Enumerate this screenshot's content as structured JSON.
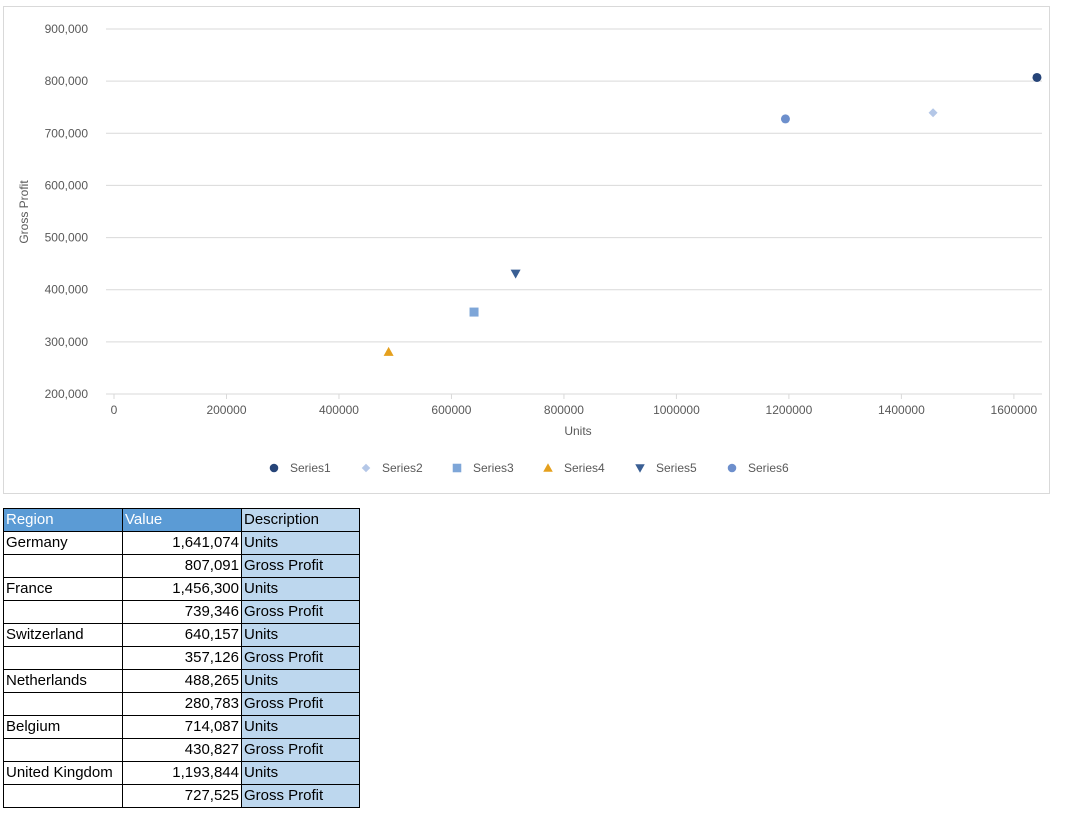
{
  "chart_data": {
    "type": "scatter",
    "xlabel": "Units",
    "ylabel": "Gross Profit",
    "xlim": [
      0,
      1650000
    ],
    "ylim": [
      200000,
      900000
    ],
    "x_ticks": [
      "0",
      "200000",
      "400000",
      "600000",
      "800000",
      "1000000",
      "1200000",
      "1400000",
      "1600000"
    ],
    "x_tick_values": [
      0,
      200000,
      400000,
      600000,
      800000,
      1000000,
      1200000,
      1400000,
      1600000
    ],
    "y_ticks": [
      "200,000",
      "300,000",
      "400,000",
      "500,000",
      "600,000",
      "700,000",
      "800,000",
      "900,000"
    ],
    "y_tick_values": [
      200000,
      300000,
      400000,
      500000,
      600000,
      700000,
      800000,
      900000
    ],
    "grid": true,
    "legend_position": "bottom",
    "series": [
      {
        "name": "Series1",
        "x": 1641074,
        "y": 807091,
        "marker": "circle",
        "color": "#264478"
      },
      {
        "name": "Series2",
        "x": 1456300,
        "y": 739346,
        "marker": "diamond",
        "color": "#b4c7e7"
      },
      {
        "name": "Series3",
        "x": 640157,
        "y": 357126,
        "marker": "square",
        "color": "#7ea6d8"
      },
      {
        "name": "Series4",
        "x": 488265,
        "y": 280783,
        "marker": "triangle-up",
        "color": "#e5a01d"
      },
      {
        "name": "Series5",
        "x": 714087,
        "y": 430827,
        "marker": "triangle-down",
        "color": "#3a5f94"
      },
      {
        "name": "Series6",
        "x": 1193844,
        "y": 727525,
        "marker": "circle",
        "color": "#6d8fcc"
      }
    ]
  },
  "table": {
    "headers": [
      "Region",
      "Value",
      "Description"
    ],
    "rows": [
      {
        "region": "Germany",
        "value": "1,641,074",
        "desc": "Units"
      },
      {
        "region": "",
        "value": "807,091",
        "desc": "Gross Profit"
      },
      {
        "region": "France",
        "value": "1,456,300",
        "desc": "Units"
      },
      {
        "region": "",
        "value": "739,346",
        "desc": "Gross Profit"
      },
      {
        "region": "Switzerland",
        "value": "640,157",
        "desc": "Units"
      },
      {
        "region": "",
        "value": "357,126",
        "desc": "Gross Profit"
      },
      {
        "region": "Netherlands",
        "value": "488,265",
        "desc": "Units"
      },
      {
        "region": "",
        "value": "280,783",
        "desc": "Gross Profit"
      },
      {
        "region": "Belgium",
        "value": "714,087",
        "desc": "Units"
      },
      {
        "region": "",
        "value": "430,827",
        "desc": "Gross Profit"
      },
      {
        "region": "United Kingdom",
        "value": "1,193,844",
        "desc": "Units"
      },
      {
        "region": "",
        "value": "727,525",
        "desc": "Gross Profit"
      }
    ]
  }
}
